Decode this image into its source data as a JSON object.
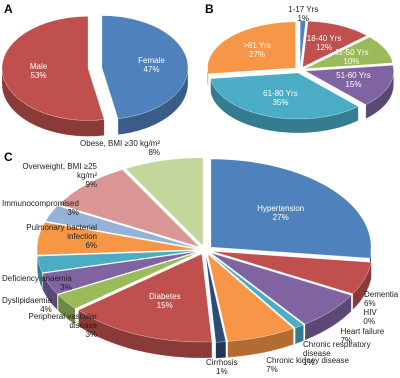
{
  "chart_data": [
    {
      "type": "pie",
      "panel": "A",
      "categories": [
        "Female",
        "Male"
      ],
      "values": [
        47,
        53
      ],
      "value_labels": [
        "47%",
        "53%"
      ],
      "colors": [
        "#4f81bd",
        "#c0504d"
      ]
    },
    {
      "type": "pie",
      "panel": "B",
      "categories": [
        "1-17 Yrs",
        "18-40 Yrs",
        "41-50 Yrs",
        "51-60 Yrs",
        "61-80 Yrs",
        ">81 Yrs"
      ],
      "values": [
        1,
        12,
        10,
        15,
        35,
        27
      ],
      "value_labels": [
        "1%",
        "12%",
        "10%",
        "15%",
        "35%",
        "27%"
      ],
      "colors": [
        "#4f81bd",
        "#c0504d",
        "#9bbb59",
        "#8064a2",
        "#4bacc6",
        "#f79646"
      ]
    },
    {
      "type": "pie",
      "panel": "C",
      "categories": [
        "Hypertension",
        "Dementia",
        "HIV",
        "Heart failure",
        "Chronic respiratory disease",
        "Chronic kidney disease",
        "Cirrhosis",
        "Diabetes",
        "Peripheral vascular disease",
        "Dyslipidaemia",
        "Deficiency anaemia",
        "Pulmonary bacterial infection",
        "Immunocompromised",
        "Overweight, BMI ≥25 kg/m²",
        "Obese, BMI ≥30 kg/m²"
      ],
      "values": [
        27,
        6,
        0,
        7,
        1,
        7,
        1,
        15,
        3,
        4,
        3,
        6,
        3,
        9,
        8
      ],
      "value_labels": [
        "27%",
        "6%",
        "0%",
        "7%",
        "1%",
        "7%",
        "1%",
        "15%",
        "3%",
        "4%",
        "3%",
        "6%",
        "3%",
        "9%",
        "8%"
      ],
      "colors": [
        "#4f81bd",
        "#c0504d",
        "#9bbb59",
        "#8064a2",
        "#4bacc6",
        "#f79646",
        "#2c4d75",
        "#c0504d",
        "#9bbb59",
        "#8064a2",
        "#4bacc6",
        "#f79646",
        "#95b3d7",
        "#d99694",
        "#c3d69b"
      ]
    }
  ]
}
